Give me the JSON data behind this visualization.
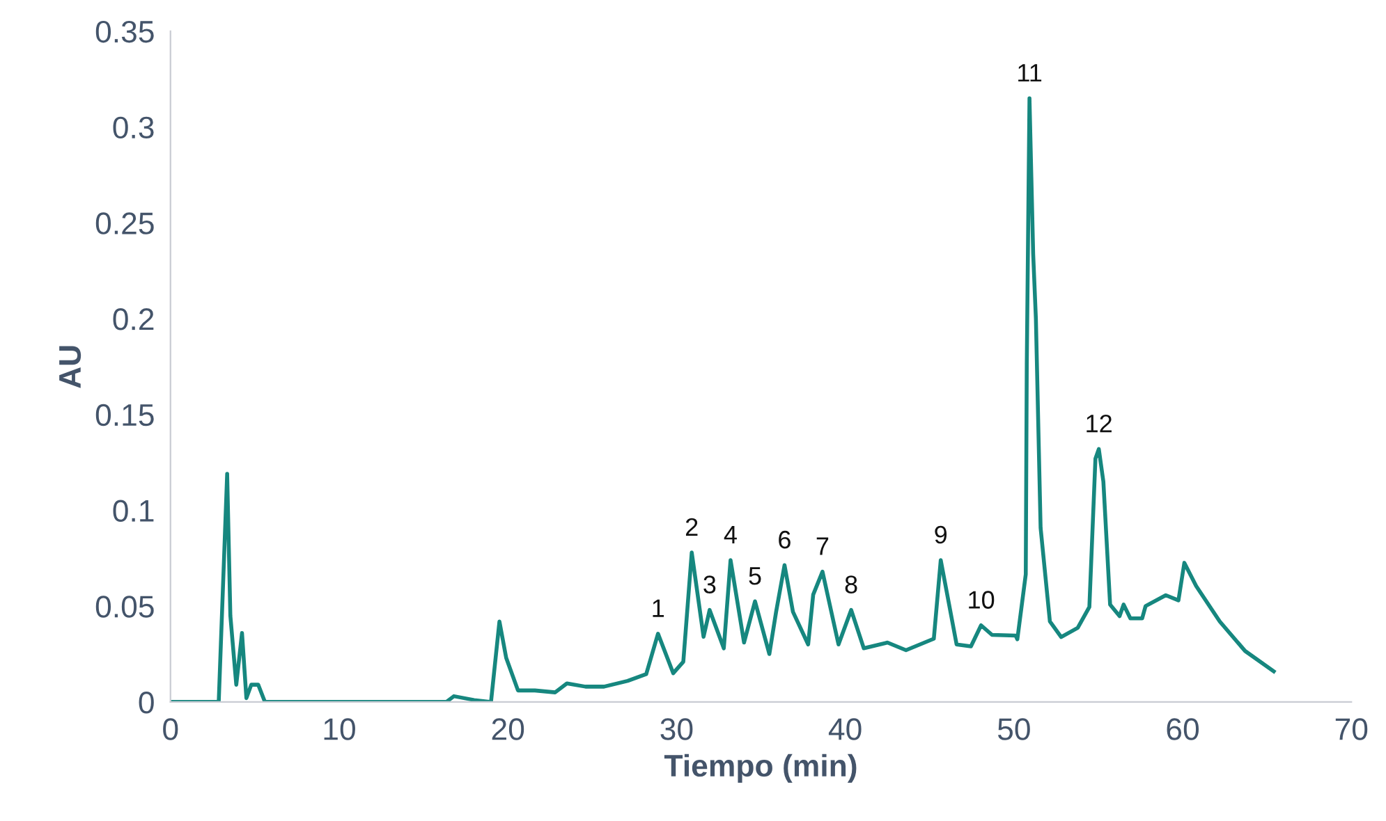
{
  "chart_data": {
    "type": "line",
    "xlabel": "Tiempo (min)",
    "ylabel": "AU",
    "xlim": [
      0,
      70
    ],
    "xticks": [
      0,
      10,
      20,
      30,
      40,
      50,
      60,
      70
    ],
    "ylim": [
      0,
      0.35
    ],
    "yticks": [
      0,
      0.05,
      0.1,
      0.15,
      0.2,
      0.25,
      0.3,
      0.35
    ],
    "grid": false,
    "marker": "none",
    "line_style": "solid",
    "series": [
      {
        "color": "#16877f",
        "x": [
          0,
          2.86,
          3.36,
          3.55,
          3.9,
          4.24,
          4.5,
          4.79,
          5.2,
          5.6,
          16.35,
          16.8,
          18,
          19.0,
          19.5,
          19.9,
          20.6,
          21.6,
          22.8,
          23.5,
          24.6,
          25.7,
          27.1,
          28.2,
          28.9,
          29.8,
          30.4,
          30.9,
          31.6,
          31.96,
          32.8,
          33.2,
          34.0,
          34.65,
          35.5,
          35.9,
          36.4,
          36.9,
          37.8,
          38.1,
          38.65,
          39.6,
          40.35,
          41.1,
          42.5,
          43.6,
          45.25,
          45.66,
          46.6,
          47.45,
          48.05,
          48.7,
          50.1,
          50.2,
          50.7,
          50.76,
          50.92,
          51.14,
          51.3,
          51.58,
          52.13,
          52.8,
          53.78,
          54.47,
          54.83,
          55.03,
          55.3,
          55.7,
          56.26,
          56.5,
          56.9,
          57.6,
          57.8,
          59.0,
          59.75,
          60.1,
          60.8,
          62.2,
          63.7,
          65.4
        ],
        "values": [
          0,
          0,
          0.119,
          0.045,
          0.009,
          0.036,
          0.002,
          0.009,
          0.009,
          0,
          0,
          0.003,
          0.001,
          0,
          0.042,
          0.023,
          0.006,
          0.006,
          0.005,
          0.0097,
          0.008,
          0.008,
          0.011,
          0.0145,
          0.0356,
          0.015,
          0.021,
          0.078,
          0.034,
          0.048,
          0.028,
          0.074,
          0.031,
          0.0525,
          0.025,
          0.047,
          0.0714,
          0.047,
          0.03,
          0.056,
          0.068,
          0.03,
          0.048,
          0.028,
          0.031,
          0.027,
          0.033,
          0.074,
          0.03,
          0.029,
          0.04,
          0.035,
          0.0346,
          0.0327,
          0.0666,
          0.176,
          0.315,
          0.2336,
          0.2,
          0.0908,
          0.042,
          0.0339,
          0.0387,
          0.0496,
          0.127,
          0.132,
          0.115,
          0.0508,
          0.0448,
          0.0508,
          0.0436,
          0.0436,
          0.05,
          0.0557,
          0.053,
          0.0726,
          0.0605,
          0.042,
          0.0266,
          0.016
        ]
      }
    ],
    "annotations": [
      {
        "text": "1",
        "x": 28.9,
        "y": 0.0356
      },
      {
        "text": "2",
        "x": 30.9,
        "y": 0.078
      },
      {
        "text": "3",
        "x": 31.96,
        "y": 0.048
      },
      {
        "text": "4",
        "x": 33.2,
        "y": 0.074
      },
      {
        "text": "5",
        "x": 34.65,
        "y": 0.0525
      },
      {
        "text": "6",
        "x": 36.4,
        "y": 0.0714
      },
      {
        "text": "7",
        "x": 38.65,
        "y": 0.068
      },
      {
        "text": "8",
        "x": 40.35,
        "y": 0.048
      },
      {
        "text": "9",
        "x": 45.66,
        "y": 0.074
      },
      {
        "text": "10",
        "x": 48.05,
        "y": 0.04
      },
      {
        "text": "11",
        "x": 50.92,
        "y": 0.315
      },
      {
        "text": "12",
        "x": 55.03,
        "y": 0.132
      }
    ]
  }
}
